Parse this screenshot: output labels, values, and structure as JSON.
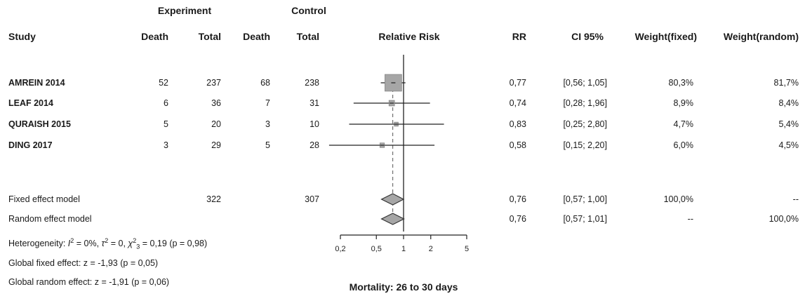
{
  "header": {
    "experiment": "Experiment",
    "control": "Control",
    "study": "Study",
    "death": "Death",
    "total": "Total",
    "relative_risk": "Relative Risk",
    "rr": "RR",
    "ci": "CI 95%",
    "weight_fixed": "Weight(fixed)",
    "weight_random": "Weight(random)"
  },
  "studies": [
    {
      "name": "AMREIN 2014",
      "e_death": "52",
      "e_total": "237",
      "c_death": "68",
      "c_total": "238",
      "rr": "0,77",
      "ci": "[0,56; 1,05]",
      "w_fixed": "80,3%",
      "w_random": "81,7%"
    },
    {
      "name": "LEAF 2014",
      "e_death": "6",
      "e_total": "36",
      "c_death": "7",
      "c_total": "31",
      "rr": "0,74",
      "ci": "[0,28; 1,96]",
      "w_fixed": "8,9%",
      "w_random": "8,4%"
    },
    {
      "name": "QURAISH 2015",
      "e_death": "5",
      "e_total": "20",
      "c_death": "3",
      "c_total": "10",
      "rr": "0,83",
      "ci": "[0,25; 2,80]",
      "w_fixed": "4,7%",
      "w_random": "5,4%"
    },
    {
      "name": "DING 2017",
      "e_death": "3",
      "e_total": "29",
      "c_death": "5",
      "c_total": "28",
      "rr": "0,58",
      "ci": "[0,15; 2,20]",
      "w_fixed": "6,0%",
      "w_random": "4,5%"
    }
  ],
  "models": [
    {
      "name": "Fixed effect model",
      "e_total": "322",
      "c_total": "307",
      "rr": "0,76",
      "ci": "[0,57; 1,00]",
      "w_fixed": "100,0%",
      "w_random": "--"
    },
    {
      "name": "Random effect model",
      "e_total": "",
      "c_total": "",
      "rr": "0,76",
      "ci": "[0,57; 1,01]",
      "w_fixed": "--",
      "w_random": "100,0%"
    }
  ],
  "footer": {
    "heterogeneity_prefix": "Heterogeneity: ",
    "i2": "I",
    "i2_rest": " = 0%, ",
    "tau": "τ",
    "tau_rest": " = 0, ",
    "chi": "χ",
    "chi_df": "3",
    "chi_rest": " = 0,19 (p = 0,98)",
    "global_fixed": "Global fixed effect: z = -1,93 (p = 0,05)",
    "global_random": "Global random effect: z = -1,91 (p = 0,06)"
  },
  "chart_data": {
    "type": "scatter",
    "title": "",
    "xlabel": "Mortality: 26 to 30 days",
    "x_scale": "log",
    "xlim": [
      0.2,
      5
    ],
    "ticks": [
      0.2,
      0.5,
      1,
      2,
      5
    ],
    "tick_labels": [
      "0,2",
      "0,5",
      "1",
      "2",
      "5"
    ],
    "reference_line": 1,
    "pooled_dashed_line": 0.76,
    "points": [
      {
        "study": "AMREIN 2014",
        "rr": 0.77,
        "lo": 0.56,
        "hi": 1.05,
        "weight": 80.3
      },
      {
        "study": "LEAF 2014",
        "rr": 0.74,
        "lo": 0.28,
        "hi": 1.96,
        "weight": 8.9
      },
      {
        "study": "QURAISH 2015",
        "rr": 0.83,
        "lo": 0.25,
        "hi": 2.8,
        "weight": 4.7
      },
      {
        "study": "DING 2017",
        "rr": 0.58,
        "lo": 0.15,
        "hi": 2.2,
        "weight": 6.0
      }
    ],
    "diamonds": [
      {
        "model": "Fixed effect model",
        "rr": 0.76,
        "lo": 0.57,
        "hi": 1.0
      },
      {
        "model": "Random effect model",
        "rr": 0.76,
        "lo": 0.57,
        "hi": 1.01
      }
    ],
    "box_color": "#a6a6a6",
    "diamond_color": "#a6a6a6"
  }
}
